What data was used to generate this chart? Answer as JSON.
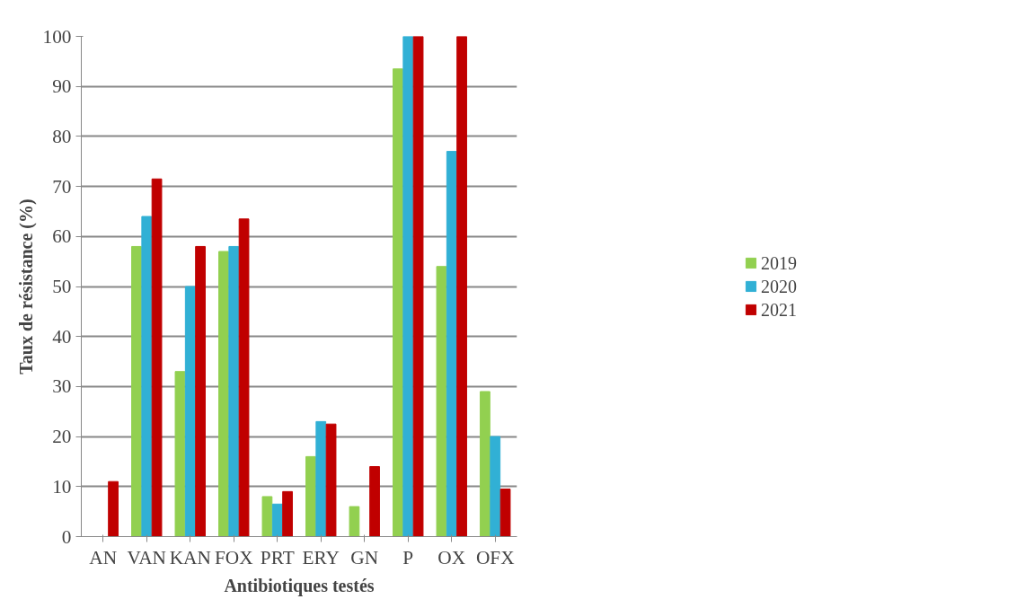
{
  "chart_data": {
    "type": "bar",
    "xlabel": "Antibiotiques testés",
    "ylabel": "Taux de résistance (%)",
    "categories": [
      "AN",
      "VAN",
      "KAN",
      "FOX",
      "PRT",
      "ERY",
      "GN",
      "P",
      "OX",
      "OFX"
    ],
    "series": [
      {
        "name": "2019",
        "color": "#92d050",
        "values": [
          0,
          58,
          33,
          57,
          8,
          16,
          6,
          93.5,
          54,
          29
        ]
      },
      {
        "name": "2020",
        "color": "#31b0d5",
        "values": [
          0,
          64,
          50,
          58,
          6.5,
          23,
          0,
          100,
          77,
          20
        ]
      },
      {
        "name": "2021",
        "color": "#c00000",
        "values": [
          11,
          71.5,
          58,
          63.5,
          9,
          22.5,
          14,
          100,
          100,
          9.5
        ]
      }
    ],
    "ylim": [
      0,
      100
    ],
    "yticks": [
      0,
      10,
      20,
      30,
      40,
      50,
      60,
      70,
      80,
      90,
      100
    ],
    "grid": "y",
    "legend": "right"
  }
}
